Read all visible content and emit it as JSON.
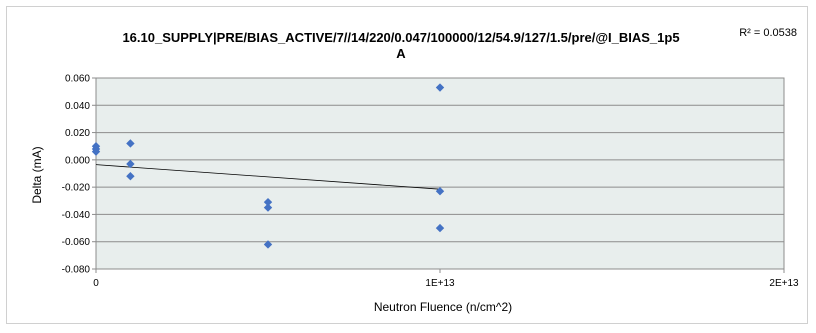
{
  "chart_data": {
    "type": "scatter",
    "title_line1": "16.10_SUPPLY|PRE/BIAS_ACTIVE/7//14/220/0.047/100000/12/54.9/127/1.5/pre/@I_BIAS_1p5",
    "title_line2": "A",
    "xlabel": "Neutron Fluence (n/cm^2)",
    "ylabel": "Delta (mA)",
    "xlim": [
      0,
      20000000000000
    ],
    "ylim": [
      -0.08,
      0.06
    ],
    "x_ticks": [
      {
        "value": 0,
        "label": "0"
      },
      {
        "value": 10000000000000,
        "label": "1E+13"
      },
      {
        "value": 20000000000000,
        "label": "2E+13"
      }
    ],
    "y_ticks": [
      {
        "value": 0.06,
        "label": "0.060"
      },
      {
        "value": 0.04,
        "label": "0.040"
      },
      {
        "value": 0.02,
        "label": "0.020"
      },
      {
        "value": 0.0,
        "label": "0.000"
      },
      {
        "value": -0.02,
        "label": "-0.020"
      },
      {
        "value": -0.04,
        "label": "-0.040"
      },
      {
        "value": -0.06,
        "label": "-0.060"
      },
      {
        "value": -0.08,
        "label": "-0.080"
      }
    ],
    "grid": "horizontal",
    "plot_background": "#e8eeed",
    "marker_color": "#4472c4",
    "marker_shape": "diamond",
    "series": [
      {
        "points": [
          {
            "x": 0,
            "y": 0.01
          },
          {
            "x": 0,
            "y": 0.008
          },
          {
            "x": 0,
            "y": 0.006
          },
          {
            "x": 1000000000000,
            "y": 0.012
          },
          {
            "x": 1000000000000,
            "y": -0.003
          },
          {
            "x": 1000000000000,
            "y": -0.012
          },
          {
            "x": 5000000000000,
            "y": -0.031
          },
          {
            "x": 5000000000000,
            "y": -0.035
          },
          {
            "x": 5000000000000,
            "y": -0.062
          },
          {
            "x": 10000000000000,
            "y": 0.053
          },
          {
            "x": 10000000000000,
            "y": -0.023
          },
          {
            "x": 10000000000000,
            "y": -0.05
          }
        ]
      }
    ],
    "trendline": {
      "type": "linear",
      "y_at_x0": -0.0035,
      "slope_per_unit_x": -1.8e-15,
      "x_end": 10000000000000,
      "color": "#000000",
      "r2_text": "R² = 0.0538"
    }
  }
}
